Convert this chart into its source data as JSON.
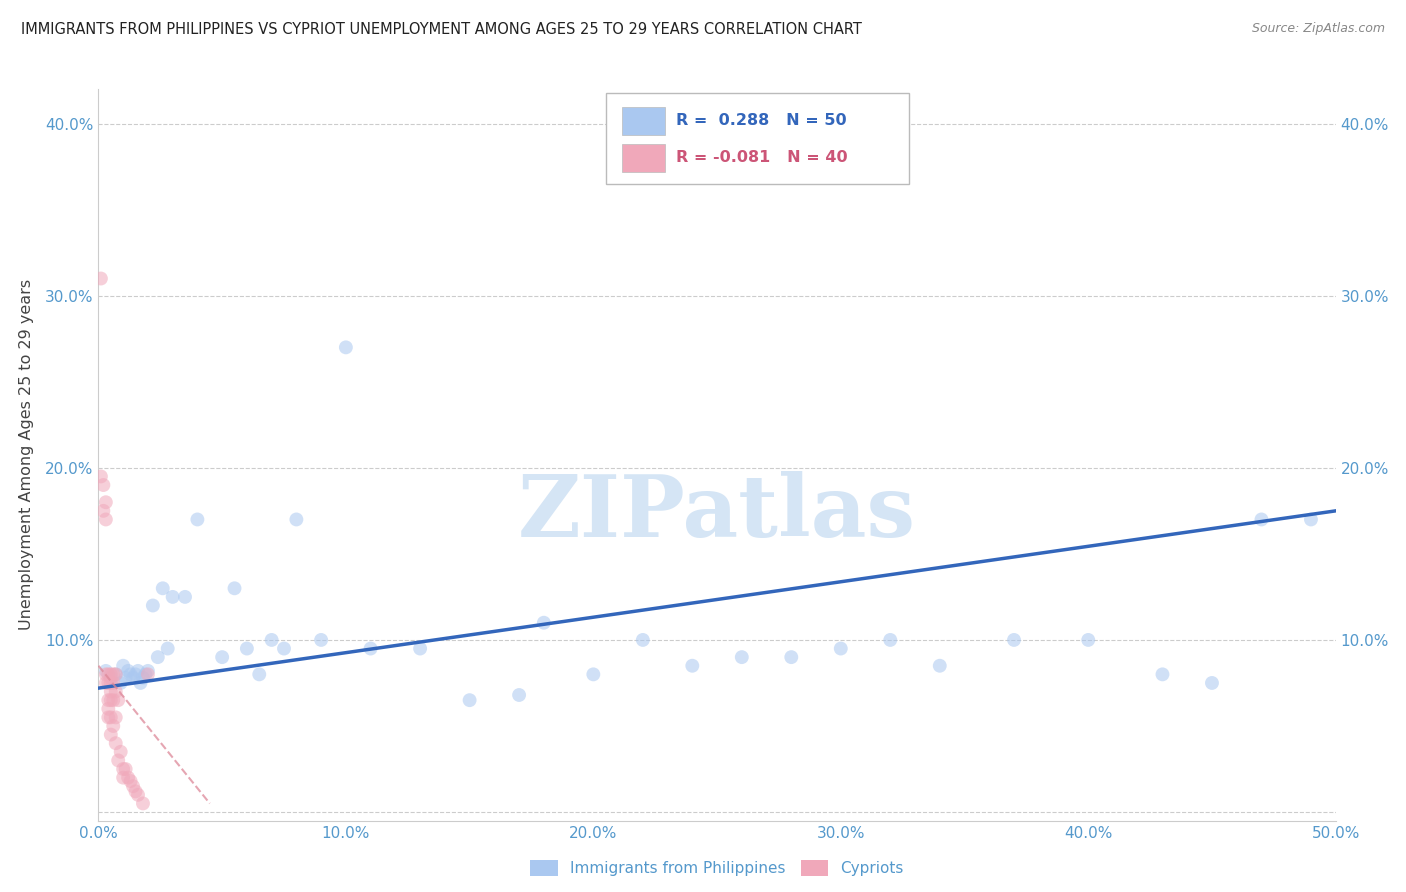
{
  "title": "IMMIGRANTS FROM PHILIPPINES VS CYPRIOT UNEMPLOYMENT AMONG AGES 25 TO 29 YEARS CORRELATION CHART",
  "source": "Source: ZipAtlas.com",
  "ylabel": "Unemployment Among Ages 25 to 29 years",
  "xlim": [
    0.0,
    0.5
  ],
  "ylim": [
    -0.005,
    0.42
  ],
  "xticks": [
    0.0,
    0.1,
    0.2,
    0.3,
    0.4,
    0.5
  ],
  "xticklabels": [
    "0.0%",
    "10.0%",
    "20.0%",
    "30.0%",
    "40.0%",
    "50.0%"
  ],
  "yticks": [
    0.0,
    0.1,
    0.2,
    0.3,
    0.4
  ],
  "yticklabels": [
    "",
    "10.0%",
    "20.0%",
    "30.0%",
    "40.0%"
  ],
  "blue_color": "#aac8f0",
  "pink_color": "#f0a8ba",
  "blue_line_color": "#3366bb",
  "pink_line_color": "#dd8899",
  "axis_tick_color": "#5599cc",
  "grid_color": "#cccccc",
  "watermark_color": "#d5e5f5",
  "blue_x": [
    0.003,
    0.005,
    0.007,
    0.009,
    0.01,
    0.011,
    0.012,
    0.013,
    0.014,
    0.015,
    0.016,
    0.017,
    0.018,
    0.019,
    0.02,
    0.022,
    0.024,
    0.026,
    0.028,
    0.03,
    0.035,
    0.04,
    0.05,
    0.055,
    0.06,
    0.065,
    0.07,
    0.075,
    0.08,
    0.09,
    0.1,
    0.11,
    0.13,
    0.15,
    0.17,
    0.18,
    0.2,
    0.22,
    0.24,
    0.26,
    0.28,
    0.3,
    0.32,
    0.34,
    0.37,
    0.4,
    0.43,
    0.45,
    0.47,
    0.49
  ],
  "blue_y": [
    0.082,
    0.078,
    0.08,
    0.075,
    0.085,
    0.078,
    0.082,
    0.08,
    0.078,
    0.08,
    0.082,
    0.075,
    0.078,
    0.08,
    0.082,
    0.12,
    0.09,
    0.13,
    0.095,
    0.125,
    0.125,
    0.17,
    0.09,
    0.13,
    0.095,
    0.08,
    0.1,
    0.095,
    0.17,
    0.1,
    0.27,
    0.095,
    0.095,
    0.065,
    0.068,
    0.11,
    0.08,
    0.1,
    0.085,
    0.09,
    0.09,
    0.095,
    0.1,
    0.085,
    0.1,
    0.1,
    0.08,
    0.075,
    0.17,
    0.17
  ],
  "pink_x": [
    0.001,
    0.001,
    0.002,
    0.002,
    0.003,
    0.003,
    0.003,
    0.003,
    0.004,
    0.004,
    0.004,
    0.004,
    0.004,
    0.005,
    0.005,
    0.005,
    0.005,
    0.005,
    0.005,
    0.006,
    0.006,
    0.006,
    0.006,
    0.007,
    0.007,
    0.007,
    0.007,
    0.008,
    0.008,
    0.009,
    0.01,
    0.01,
    0.011,
    0.012,
    0.013,
    0.014,
    0.015,
    0.016,
    0.018,
    0.02
  ],
  "pink_y": [
    0.31,
    0.195,
    0.19,
    0.175,
    0.18,
    0.17,
    0.08,
    0.075,
    0.08,
    0.075,
    0.065,
    0.06,
    0.055,
    0.08,
    0.075,
    0.07,
    0.065,
    0.055,
    0.045,
    0.08,
    0.075,
    0.065,
    0.05,
    0.08,
    0.07,
    0.055,
    0.04,
    0.065,
    0.03,
    0.035,
    0.025,
    0.02,
    0.025,
    0.02,
    0.018,
    0.015,
    0.012,
    0.01,
    0.005,
    0.08
  ],
  "blue_trend_x": [
    0.0,
    0.5
  ],
  "blue_trend_y_start": 0.072,
  "blue_trend_y_end": 0.175,
  "pink_trend_x": [
    0.0,
    0.045
  ],
  "pink_trend_y_start": 0.085,
  "pink_trend_y_end": 0.005,
  "marker_size": 100,
  "marker_alpha": 0.55
}
